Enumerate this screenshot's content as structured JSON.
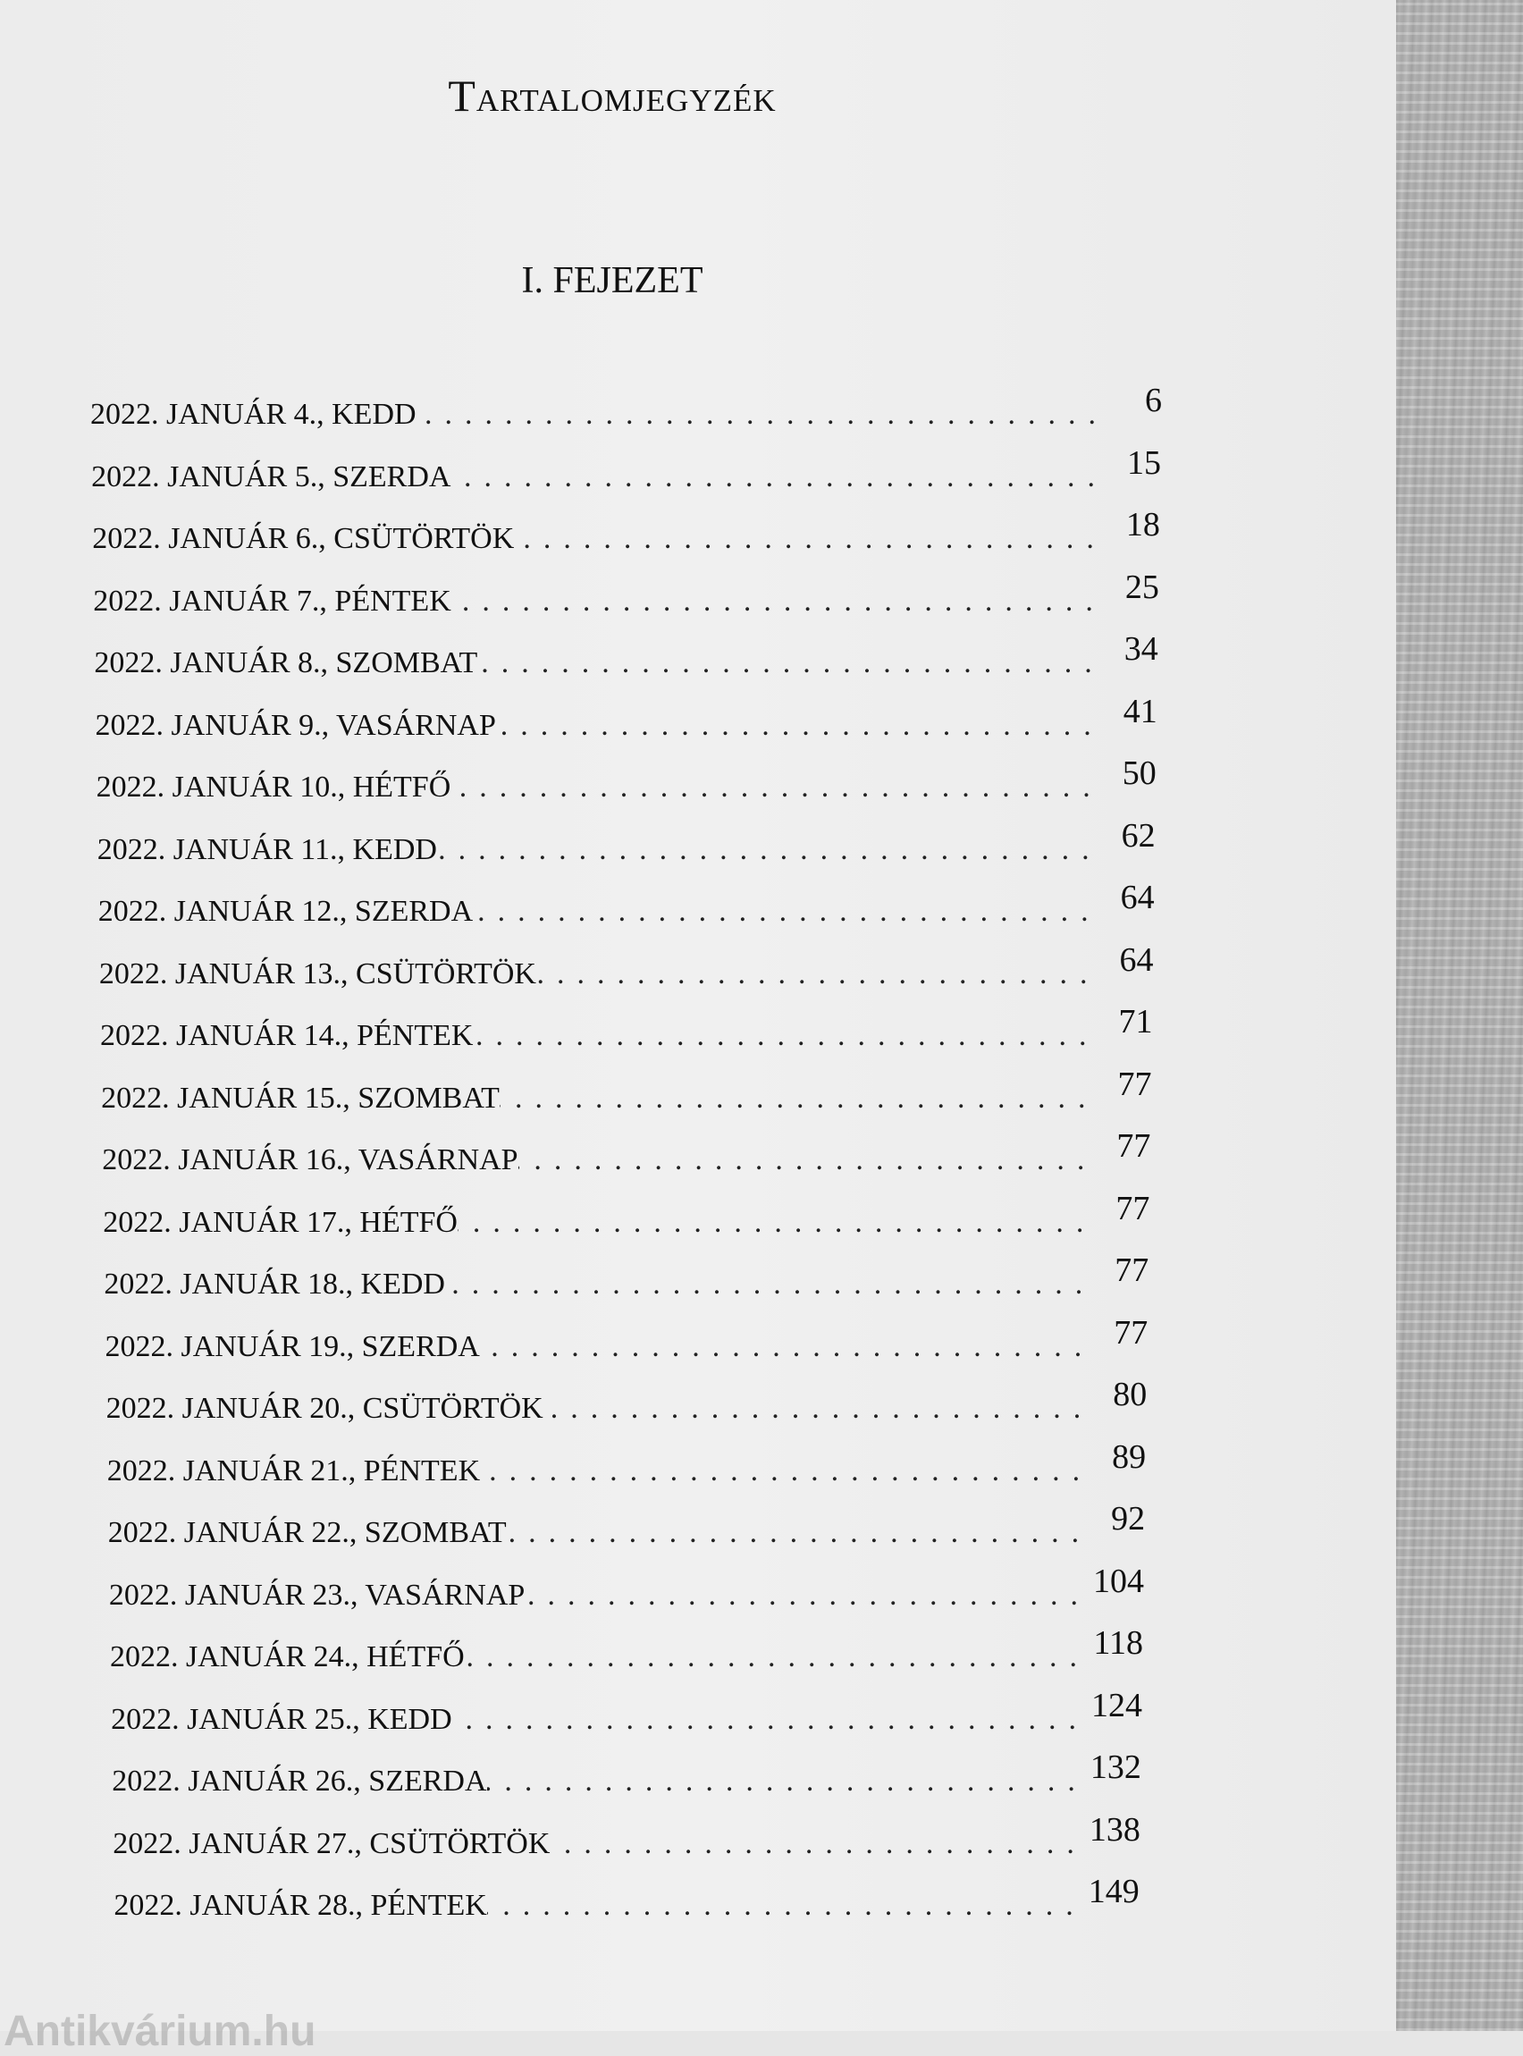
{
  "title": "Tartalomjegyzék",
  "chapter": "I. FEJEZET",
  "watermark": "Antikvárium.hu",
  "entries": [
    {
      "label": "2022. JANUÁR 4., KEDD",
      "page": "6"
    },
    {
      "label": "2022. JANUÁR 5., SZERDA",
      "page": "15"
    },
    {
      "label": "2022. JANUÁR 6., CSÜTÖRTÖK",
      "page": "18"
    },
    {
      "label": "2022. JANUÁR 7., PÉNTEK",
      "page": "25"
    },
    {
      "label": "2022. JANUÁR 8., SZOMBAT",
      "page": "34"
    },
    {
      "label": "2022. JANUÁR 9., VASÁRNAP",
      "page": "41"
    },
    {
      "label": "2022. JANUÁR 10., HÉTFŐ",
      "page": "50"
    },
    {
      "label": "2022. JANUÁR 11., KEDD",
      "page": "62"
    },
    {
      "label": "2022. JANUÁR 12., SZERDA",
      "page": "64"
    },
    {
      "label": "2022. JANUÁR 13., CSÜTÖRTÖK",
      "page": "64"
    },
    {
      "label": "2022. JANUÁR 14., PÉNTEK",
      "page": "71"
    },
    {
      "label": "2022. JANUÁR 15., SZOMBAT",
      "page": "77"
    },
    {
      "label": "2022. JANUÁR 16., VASÁRNAP",
      "page": "77"
    },
    {
      "label": "2022. JANUÁR 17., HÉTFŐ",
      "page": "77"
    },
    {
      "label": "2022. JANUÁR 18., KEDD",
      "page": "77"
    },
    {
      "label": "2022. JANUÁR 19., SZERDA",
      "page": "77"
    },
    {
      "label": "2022. JANUÁR 20., CSÜTÖRTÖK",
      "page": "80"
    },
    {
      "label": "2022. JANUÁR 21., PÉNTEK",
      "page": "89"
    },
    {
      "label": "2022. JANUÁR 22., SZOMBAT",
      "page": "92"
    },
    {
      "label": "2022. JANUÁR 23., VASÁRNAP",
      "page": "104"
    },
    {
      "label": "2022. JANUÁR 24., HÉTFŐ",
      "page": "118"
    },
    {
      "label": "2022. JANUÁR 25., KEDD",
      "page": "124"
    },
    {
      "label": "2022. JANUÁR 26., SZERDA",
      "page": "132"
    },
    {
      "label": "2022. JANUÁR 27., CSÜTÖRTÖK",
      "page": "138"
    },
    {
      "label": "2022. JANUÁR 28., PÉNTEK",
      "page": "149"
    }
  ]
}
